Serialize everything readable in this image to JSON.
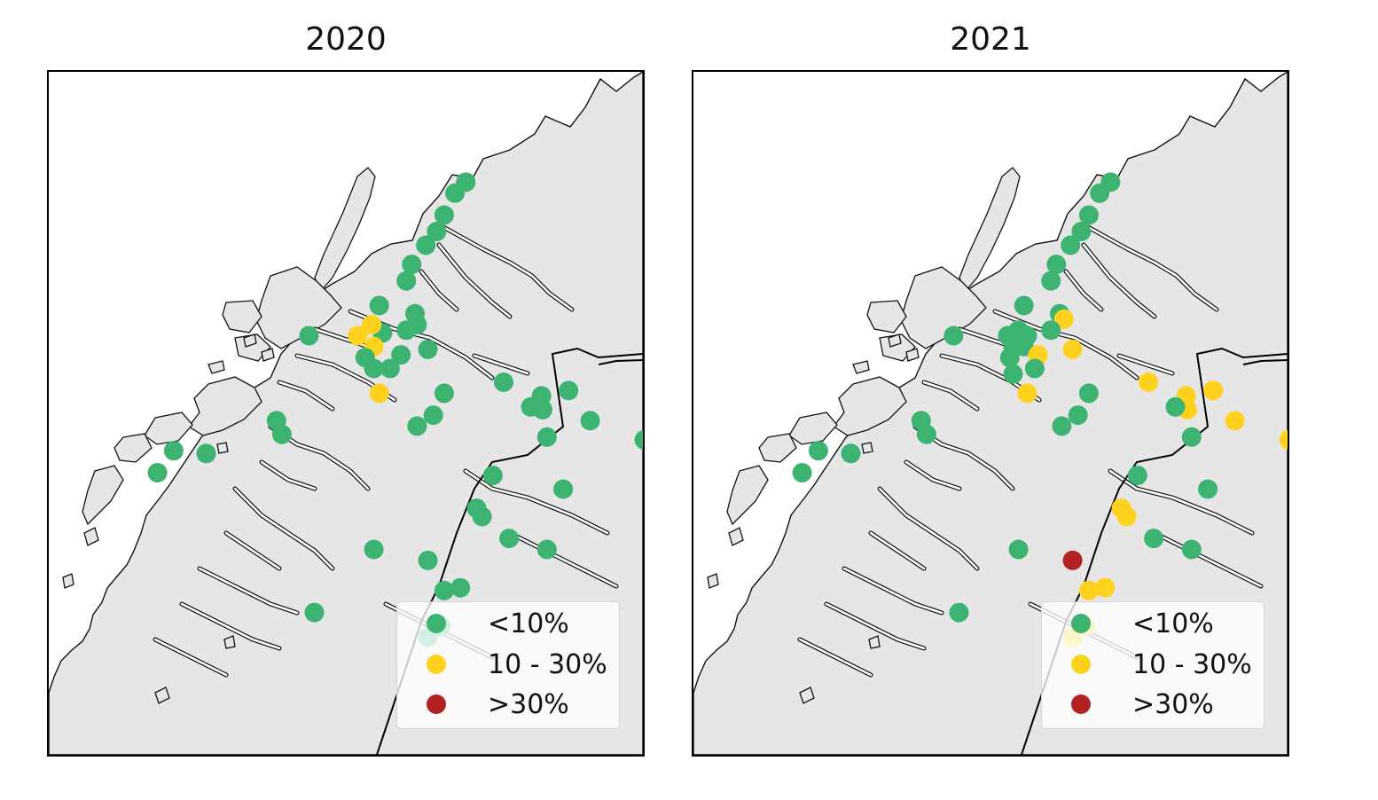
{
  "panels": [
    {
      "title": "2020",
      "sites": [
        {
          "lon": 15.65,
          "lat": 69.32,
          "cat": "low"
        },
        {
          "lon": 15.55,
          "lat": 69.28,
          "cat": "low"
        },
        {
          "lon": 15.45,
          "lat": 69.2,
          "cat": "low"
        },
        {
          "lon": 15.38,
          "lat": 69.14,
          "cat": "low"
        },
        {
          "lon": 15.28,
          "lat": 69.09,
          "cat": "low"
        },
        {
          "lon": 15.15,
          "lat": 69.02,
          "cat": "low"
        },
        {
          "lon": 15.1,
          "lat": 68.96,
          "cat": "low"
        },
        {
          "lon": 14.85,
          "lat": 68.87,
          "cat": "low"
        },
        {
          "lon": 15.18,
          "lat": 68.84,
          "cat": "low"
        },
        {
          "lon": 15.2,
          "lat": 68.8,
          "cat": "low"
        },
        {
          "lon": 15.1,
          "lat": 68.78,
          "cat": "low"
        },
        {
          "lon": 14.88,
          "lat": 68.77,
          "cat": "low"
        },
        {
          "lon": 14.2,
          "lat": 68.76,
          "cat": "low"
        },
        {
          "lon": 14.65,
          "lat": 68.76,
          "cat": "yellow"
        },
        {
          "lon": 14.78,
          "lat": 68.8,
          "cat": "yellow"
        },
        {
          "lon": 14.8,
          "lat": 68.72,
          "cat": "yellow"
        },
        {
          "lon": 14.72,
          "lat": 68.68,
          "cat": "low"
        },
        {
          "lon": 15.3,
          "lat": 68.71,
          "cat": "low"
        },
        {
          "lon": 15.05,
          "lat": 68.69,
          "cat": "low"
        },
        {
          "lon": 14.8,
          "lat": 68.64,
          "cat": "low"
        },
        {
          "lon": 14.95,
          "lat": 68.64,
          "cat": "low"
        },
        {
          "lon": 14.85,
          "lat": 68.55,
          "cat": "yellow"
        },
        {
          "lon": 15.45,
          "lat": 68.55,
          "cat": "low"
        },
        {
          "lon": 16.0,
          "lat": 68.59,
          "cat": "low"
        },
        {
          "lon": 16.6,
          "lat": 68.56,
          "cat": "low"
        },
        {
          "lon": 16.35,
          "lat": 68.54,
          "cat": "low"
        },
        {
          "lon": 16.25,
          "lat": 68.5,
          "cat": "low"
        },
        {
          "lon": 16.36,
          "lat": 68.49,
          "cat": "low"
        },
        {
          "lon": 17.42,
          "lat": 68.6,
          "cat": "low"
        },
        {
          "lon": 17.75,
          "lat": 68.5,
          "cat": "low"
        },
        {
          "lon": 16.8,
          "lat": 68.45,
          "cat": "low"
        },
        {
          "lon": 15.35,
          "lat": 68.47,
          "cat": "low"
        },
        {
          "lon": 15.2,
          "lat": 68.43,
          "cat": "low"
        },
        {
          "lon": 13.9,
          "lat": 68.45,
          "cat": "low"
        },
        {
          "lon": 13.95,
          "lat": 68.4,
          "cat": "low"
        },
        {
          "lon": 16.4,
          "lat": 68.39,
          "cat": "low"
        },
        {
          "lon": 17.3,
          "lat": 68.38,
          "cat": "low"
        },
        {
          "lon": 12.95,
          "lat": 68.34,
          "cat": "low"
        },
        {
          "lon": 13.25,
          "lat": 68.33,
          "cat": "low"
        },
        {
          "lon": 12.8,
          "lat": 68.26,
          "cat": "low"
        },
        {
          "lon": 15.9,
          "lat": 68.25,
          "cat": "low"
        },
        {
          "lon": 16.55,
          "lat": 68.2,
          "cat": "low"
        },
        {
          "lon": 15.75,
          "lat": 68.13,
          "cat": "low"
        },
        {
          "lon": 15.8,
          "lat": 68.1,
          "cat": "low"
        },
        {
          "lon": 16.05,
          "lat": 68.02,
          "cat": "low"
        },
        {
          "lon": 16.4,
          "lat": 67.98,
          "cat": "low"
        },
        {
          "lon": 14.8,
          "lat": 67.98,
          "cat": "low"
        },
        {
          "lon": 15.3,
          "lat": 67.94,
          "cat": "low"
        },
        {
          "lon": 15.45,
          "lat": 67.83,
          "cat": "low"
        },
        {
          "lon": 15.6,
          "lat": 67.84,
          "cat": "low"
        },
        {
          "lon": 14.25,
          "lat": 67.75,
          "cat": "low"
        },
        {
          "lon": 15.42,
          "lat": 67.7,
          "cat": "low"
        },
        {
          "lon": 15.3,
          "lat": 67.66,
          "cat": "low"
        }
      ]
    },
    {
      "title": "2021",
      "sites": [
        {
          "lon": 15.65,
          "lat": 69.32,
          "cat": "low"
        },
        {
          "lon": 15.55,
          "lat": 69.28,
          "cat": "low"
        },
        {
          "lon": 15.45,
          "lat": 69.2,
          "cat": "low"
        },
        {
          "lon": 15.38,
          "lat": 69.14,
          "cat": "low"
        },
        {
          "lon": 15.28,
          "lat": 69.09,
          "cat": "low"
        },
        {
          "lon": 15.15,
          "lat": 69.02,
          "cat": "low"
        },
        {
          "lon": 15.1,
          "lat": 68.96,
          "cat": "low"
        },
        {
          "lon": 14.85,
          "lat": 68.87,
          "cat": "low"
        },
        {
          "lon": 15.18,
          "lat": 68.84,
          "cat": "low"
        },
        {
          "lon": 15.22,
          "lat": 68.82,
          "cat": "yellow"
        },
        {
          "lon": 15.1,
          "lat": 68.78,
          "cat": "low"
        },
        {
          "lon": 14.8,
          "lat": 68.78,
          "cat": "low"
        },
        {
          "lon": 14.2,
          "lat": 68.76,
          "cat": "low"
        },
        {
          "lon": 14.7,
          "lat": 68.76,
          "cat": "low"
        },
        {
          "lon": 14.88,
          "lat": 68.76,
          "cat": "low"
        },
        {
          "lon": 14.75,
          "lat": 68.72,
          "cat": "low"
        },
        {
          "lon": 14.85,
          "lat": 68.72,
          "cat": "low"
        },
        {
          "lon": 15.3,
          "lat": 68.71,
          "cat": "yellow"
        },
        {
          "lon": 14.98,
          "lat": 68.69,
          "cat": "yellow"
        },
        {
          "lon": 14.72,
          "lat": 68.68,
          "cat": "low"
        },
        {
          "lon": 14.95,
          "lat": 68.64,
          "cat": "low"
        },
        {
          "lon": 14.75,
          "lat": 68.62,
          "cat": "low"
        },
        {
          "lon": 14.88,
          "lat": 68.55,
          "cat": "yellow"
        },
        {
          "lon": 15.45,
          "lat": 68.55,
          "cat": "low"
        },
        {
          "lon": 16.0,
          "lat": 68.59,
          "cat": "yellow"
        },
        {
          "lon": 16.6,
          "lat": 68.56,
          "cat": "yellow"
        },
        {
          "lon": 16.35,
          "lat": 68.54,
          "cat": "yellow"
        },
        {
          "lon": 16.36,
          "lat": 68.49,
          "cat": "yellow"
        },
        {
          "lon": 16.25,
          "lat": 68.5,
          "cat": "low"
        },
        {
          "lon": 17.42,
          "lat": 68.6,
          "cat": "yellow"
        },
        {
          "lon": 17.75,
          "lat": 68.5,
          "cat": "yellow"
        },
        {
          "lon": 16.8,
          "lat": 68.45,
          "cat": "yellow"
        },
        {
          "lon": 15.35,
          "lat": 68.47,
          "cat": "low"
        },
        {
          "lon": 15.2,
          "lat": 68.43,
          "cat": "low"
        },
        {
          "lon": 13.9,
          "lat": 68.45,
          "cat": "low"
        },
        {
          "lon": 13.95,
          "lat": 68.4,
          "cat": "low"
        },
        {
          "lon": 16.4,
          "lat": 68.39,
          "cat": "low"
        },
        {
          "lon": 17.3,
          "lat": 68.38,
          "cat": "yellow"
        },
        {
          "lon": 12.95,
          "lat": 68.34,
          "cat": "low"
        },
        {
          "lon": 13.25,
          "lat": 68.33,
          "cat": "low"
        },
        {
          "lon": 12.8,
          "lat": 68.26,
          "cat": "low"
        },
        {
          "lon": 15.9,
          "lat": 68.25,
          "cat": "low"
        },
        {
          "lon": 16.55,
          "lat": 68.2,
          "cat": "low"
        },
        {
          "lon": 15.75,
          "lat": 68.13,
          "cat": "yellow"
        },
        {
          "lon": 15.8,
          "lat": 68.1,
          "cat": "yellow"
        },
        {
          "lon": 16.05,
          "lat": 68.02,
          "cat": "low"
        },
        {
          "lon": 16.4,
          "lat": 67.98,
          "cat": "low"
        },
        {
          "lon": 14.8,
          "lat": 67.98,
          "cat": "low"
        },
        {
          "lon": 15.3,
          "lat": 67.94,
          "cat": "red"
        },
        {
          "lon": 15.45,
          "lat": 67.83,
          "cat": "yellow"
        },
        {
          "lon": 15.6,
          "lat": 67.84,
          "cat": "yellow"
        },
        {
          "lon": 14.25,
          "lat": 67.75,
          "cat": "low"
        },
        {
          "lon": 15.42,
          "lat": 67.7,
          "cat": "yellow"
        },
        {
          "lon": 15.3,
          "lat": 67.66,
          "cat": "yellow"
        }
      ]
    }
  ],
  "legend": [
    {
      "key": "low",
      "label": "<10%",
      "color": "#3cb371"
    },
    {
      "key": "yellow",
      "label": "10 - 30%",
      "color": "#ffd21f"
    },
    {
      "key": "red",
      "label": ">30%",
      "color": "#b22222"
    }
  ],
  "map_style": {
    "land_color": "#e6e6e6",
    "sea_color": "#ffffff",
    "coast_color": "#111111",
    "border_color": "#000000"
  }
}
